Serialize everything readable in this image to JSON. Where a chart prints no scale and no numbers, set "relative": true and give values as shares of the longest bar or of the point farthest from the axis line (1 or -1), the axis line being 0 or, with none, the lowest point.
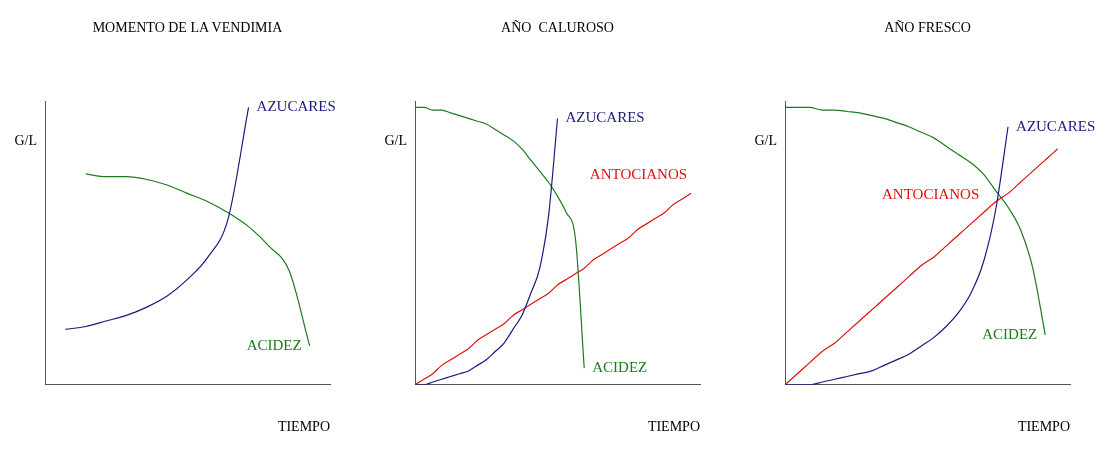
{
  "chart_data": [
    {
      "type": "line",
      "title": "MOMENTO DE LA VENDIMIA",
      "xlabel": "TIEMPO",
      "ylabel": "G/L",
      "relative": true,
      "legend": false,
      "grid": false,
      "marker": "none",
      "categories": [
        null,
        null,
        null,
        null,
        null,
        null,
        null,
        null,
        null,
        null,
        null,
        null,
        null,
        null,
        null
      ],
      "series": [
        {
          "name": "AZUCARES",
          "color": "#1a1a80",
          "values": [
            null,
            0.2,
            0.21,
            0.23,
            0.25,
            0.28,
            0.32,
            0.38,
            0.46,
            0.6,
            1.0,
            null,
            null,
            null,
            null
          ]
        },
        {
          "name": "ACIDEZ",
          "color": "#1e7a1e",
          "values": [
            null,
            null,
            0.76,
            0.75,
            0.75,
            0.74,
            0.72,
            0.69,
            0.66,
            0.62,
            0.57,
            0.5,
            0.41,
            0.14,
            null
          ]
        }
      ]
    },
    {
      "type": "line",
      "title": "AÑO  CALUROSO",
      "xlabel": "TIEMPO",
      "ylabel": "G/L",
      "relative": true,
      "legend": false,
      "grid": false,
      "marker": "none",
      "categories": [
        null,
        null,
        null,
        null,
        null,
        null,
        null,
        null,
        null,
        null,
        null,
        null,
        null,
        null,
        null,
        null,
        null,
        null,
        null,
        null,
        null,
        null,
        null,
        null,
        null,
        null,
        null,
        null,
        null,
        null,
        null,
        null,
        null
      ],
      "series": [
        {
          "name": "AZUCARES",
          "color": "#1a1a80",
          "values": [
            0,
            0,
            0.01,
            0.02,
            0.03,
            0.04,
            0.05,
            0.07,
            0.09,
            0.12,
            0.15,
            0.2,
            0.25,
            0.33,
            0.42,
            0.61,
            0.96,
            null,
            null,
            null,
            null,
            null,
            null,
            null,
            null,
            null,
            null,
            null,
            null,
            null,
            null,
            null,
            null
          ]
        },
        {
          "name": "ANTOCIANOS",
          "color": "#e01010",
          "values": [
            0,
            0.02,
            0.04,
            0.07,
            0.09,
            0.11,
            0.13,
            0.16,
            0.18,
            0.2,
            0.22,
            0.25,
            0.27,
            0.29,
            0.31,
            0.33,
            0.36,
            0.38,
            0.4,
            0.42,
            0.45,
            0.47,
            0.49,
            0.51,
            0.53,
            0.56,
            0.58,
            0.6,
            0.62,
            0.65,
            0.67,
            0.69,
            null
          ]
        },
        {
          "name": "ACIDEZ",
          "color": "#1e7a1e",
          "values": [
            1.0,
            1.0,
            0.99,
            0.99,
            0.98,
            0.97,
            0.96,
            0.95,
            0.94,
            0.92,
            0.9,
            0.88,
            0.85,
            0.81,
            0.77,
            0.73,
            0.68,
            0.62,
            0.53,
            0.06,
            null,
            null,
            null,
            null,
            null,
            null,
            null,
            null,
            null,
            null,
            null,
            null,
            null
          ]
        }
      ]
    },
    {
      "type": "line",
      "title": "AÑO FRESCO",
      "xlabel": "TIEMPO",
      "ylabel": "G/L",
      "relative": true,
      "legend": false,
      "grid": false,
      "marker": "none",
      "categories": [
        null,
        null,
        null,
        null,
        null,
        null,
        null,
        null,
        null,
        null,
        null,
        null,
        null,
        null,
        null,
        null,
        null,
        null,
        null,
        null,
        null,
        null,
        null,
        null
      ],
      "series": [
        {
          "name": "AZUCARES",
          "color": "#1a1a80",
          "values": [
            0,
            0,
            0,
            0.01,
            0.02,
            0.03,
            0.04,
            0.05,
            0.07,
            0.09,
            0.11,
            0.14,
            0.17,
            0.21,
            0.26,
            0.33,
            0.44,
            0.63,
            0.93,
            null,
            null,
            null,
            null,
            null
          ]
        },
        {
          "name": "ANTOCIANOS",
          "color": "#e01010",
          "values": [
            0,
            0.04,
            0.08,
            0.12,
            0.15,
            0.19,
            0.23,
            0.27,
            0.31,
            0.35,
            0.39,
            0.43,
            0.46,
            0.5,
            0.54,
            0.58,
            0.62,
            0.66,
            0.69,
            0.73,
            0.77,
            0.81,
            0.85,
            null
          ]
        },
        {
          "name": "ACIDEZ",
          "color": "#1e7a1e",
          "values": [
            1.0,
            1.0,
            1.0,
            0.99,
            0.99,
            0.985,
            0.98,
            0.97,
            0.96,
            0.945,
            0.93,
            0.91,
            0.89,
            0.86,
            0.83,
            0.8,
            0.76,
            0.7,
            0.64,
            0.56,
            0.42,
            0.18,
            null,
            null
          ]
        }
      ]
    }
  ]
}
